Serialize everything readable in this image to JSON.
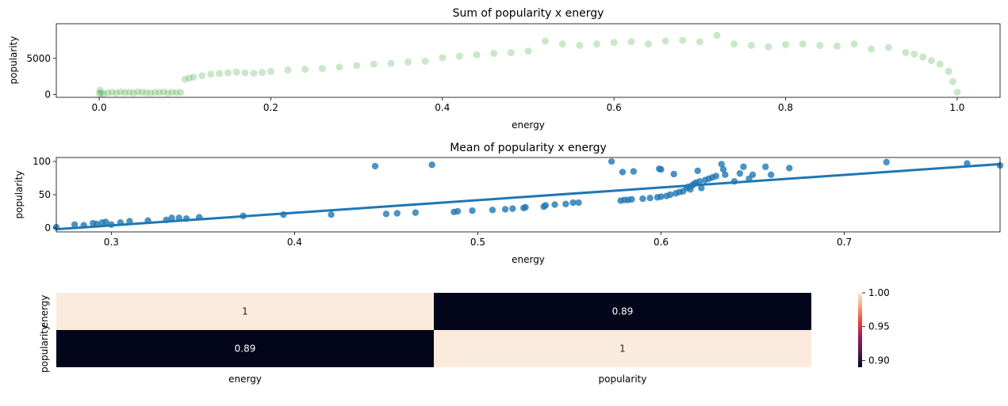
{
  "chart_data": [
    {
      "type": "scatter",
      "title": "Sum of popularity x energy",
      "xlabel": "energy",
      "ylabel": "popularity",
      "xlim": [
        -0.05,
        1.05
      ],
      "ylim": [
        -400,
        9800
      ],
      "xticks": [
        0.0,
        0.2,
        0.4,
        0.6,
        0.8,
        1.0
      ],
      "xtick_labels": [
        "0.0",
        "0.2",
        "0.4",
        "0.6",
        "0.8",
        "1.0"
      ],
      "yticks": [
        0,
        5000
      ],
      "ytick_labels": [
        "0",
        "5000"
      ],
      "color": "#2ca02c",
      "alpha": 0.1,
      "grid": false,
      "x": [
        0.0,
        0.001,
        0.002,
        0.005,
        0.01,
        0.015,
        0.02,
        0.025,
        0.03,
        0.035,
        0.04,
        0.045,
        0.05,
        0.055,
        0.06,
        0.065,
        0.07,
        0.075,
        0.08,
        0.085,
        0.09,
        0.095,
        0.1,
        0.105,
        0.11,
        0.12,
        0.13,
        0.14,
        0.15,
        0.16,
        0.17,
        0.18,
        0.19,
        0.2,
        0.22,
        0.24,
        0.26,
        0.28,
        0.3,
        0.32,
        0.34,
        0.36,
        0.38,
        0.4,
        0.42,
        0.44,
        0.46,
        0.48,
        0.5,
        0.52,
        0.54,
        0.56,
        0.58,
        0.6,
        0.62,
        0.64,
        0.66,
        0.68,
        0.7,
        0.72,
        0.74,
        0.76,
        0.78,
        0.8,
        0.82,
        0.84,
        0.86,
        0.88,
        0.9,
        0.92,
        0.94,
        0.95,
        0.96,
        0.97,
        0.98,
        0.99,
        0.995,
        1.0
      ],
      "y": [
        150,
        600,
        200,
        100,
        250,
        300,
        200,
        350,
        250,
        300,
        200,
        350,
        300,
        250,
        200,
        300,
        250,
        350,
        200,
        300,
        250,
        300,
        2100,
        2300,
        2400,
        2600,
        2800,
        2900,
        3000,
        3100,
        3000,
        2950,
        3050,
        3200,
        3400,
        3500,
        3600,
        3800,
        4000,
        4200,
        4300,
        4500,
        4600,
        5100,
        5300,
        5500,
        5700,
        5800,
        6000,
        7400,
        7000,
        6800,
        7000,
        7200,
        7300,
        7000,
        7400,
        7500,
        7300,
        8200,
        7000,
        6800,
        6600,
        6900,
        7000,
        6800,
        6700,
        7000,
        6300,
        6500,
        5800,
        5600,
        5200,
        4700,
        4200,
        3200,
        1800,
        300
      ]
    },
    {
      "type": "scatter",
      "title": "Mean of popularity x energy",
      "xlabel": "energy",
      "ylabel": "popularity",
      "xlim": [
        0.27,
        0.785
      ],
      "ylim": [
        -6,
        106
      ],
      "xticks": [
        0.3,
        0.4,
        0.5,
        0.6,
        0.7
      ],
      "xtick_labels": [
        "0.3",
        "0.4",
        "0.5",
        "0.6",
        "0.7"
      ],
      "yticks": [
        0,
        50,
        100
      ],
      "ytick_labels": [
        "0",
        "50",
        "100"
      ],
      "color": "#1f77b4",
      "grid": false,
      "x": [
        0.27,
        0.28,
        0.285,
        0.29,
        0.292,
        0.295,
        0.297,
        0.3,
        0.305,
        0.31,
        0.32,
        0.33,
        0.333,
        0.337,
        0.341,
        0.348,
        0.372,
        0.394,
        0.42,
        0.444,
        0.45,
        0.456,
        0.466,
        0.475,
        0.487,
        0.489,
        0.497,
        0.508,
        0.515,
        0.519,
        0.525,
        0.526,
        0.536,
        0.537,
        0.542,
        0.548,
        0.552,
        0.555,
        0.573,
        0.578,
        0.579,
        0.58,
        0.582,
        0.584,
        0.585,
        0.59,
        0.594,
        0.598,
        0.599,
        0.6,
        0.6,
        0.603,
        0.605,
        0.607,
        0.608,
        0.61,
        0.612,
        0.614,
        0.615,
        0.616,
        0.617,
        0.618,
        0.619,
        0.62,
        0.621,
        0.622,
        0.624,
        0.626,
        0.628,
        0.63,
        0.633,
        0.634,
        0.635,
        0.64,
        0.643,
        0.645,
        0.648,
        0.65,
        0.657,
        0.66,
        0.67,
        0.723,
        0.767,
        0.785
      ],
      "y": [
        1,
        5,
        4,
        7,
        6,
        8,
        9,
        5,
        8,
        10,
        11,
        12,
        15,
        15,
        14,
        16,
        18,
        20,
        20,
        93,
        21,
        22,
        23,
        95,
        24,
        25,
        26,
        27,
        28,
        29,
        30,
        31,
        32,
        34,
        35,
        36,
        38,
        38,
        100,
        41,
        84,
        42,
        42,
        43,
        85,
        44,
        45,
        46,
        89,
        88,
        47,
        48,
        50,
        81,
        52,
        54,
        55,
        60,
        62,
        58,
        64,
        66,
        68,
        86,
        70,
        60,
        72,
        74,
        76,
        78,
        96,
        88,
        80,
        70,
        82,
        92,
        74,
        80,
        92,
        80,
        90,
        99,
        97,
        94
      ],
      "regression": {
        "x": [
          0.27,
          0.785
        ],
        "y": [
          -2,
          96
        ]
      }
    },
    {
      "type": "heatmap",
      "rows": [
        "energy",
        "popularity"
      ],
      "columns": [
        "energy",
        "popularity"
      ],
      "values": [
        [
          1,
          0.89
        ],
        [
          0.89,
          1
        ]
      ],
      "annotations": [
        [
          "1",
          "0.89"
        ],
        [
          "0.89",
          "1"
        ]
      ],
      "colorbar": {
        "min": 0.89,
        "max": 1.0,
        "ticks": [
          0.9,
          0.95,
          1.0
        ],
        "tick_labels": [
          "0.90",
          "0.95",
          "1.00"
        ]
      },
      "colors": {
        "high": "#faebdd",
        "low": "#03051a"
      }
    }
  ]
}
